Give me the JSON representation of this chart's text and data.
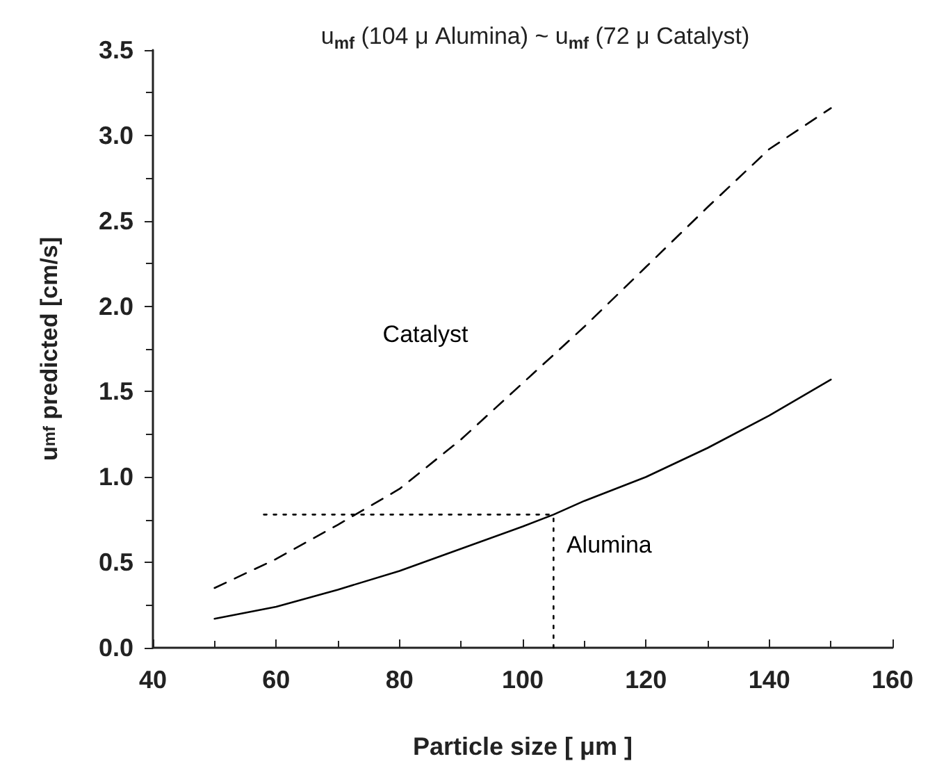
{
  "chart_data": {
    "type": "line",
    "title": "u$_{mf}$ (104 μ Alumina) ~ u$_{mf}$ (72 μ Catalyst)",
    "xlabel": "Particle size [ μm ]",
    "ylabel": "u$_{mf}$ predicted [cm/s]",
    "xlim": [
      40,
      160
    ],
    "xticks": [
      40,
      60,
      80,
      100,
      120,
      140,
      160
    ],
    "ylim": [
      0,
      3.5
    ],
    "yticks": [
      {
        "value": 0,
        "label": "0.0"
      },
      {
        "value": 0.5,
        "label": "0.5"
      },
      {
        "value": 1,
        "label": "1.0"
      },
      {
        "value": 1.5,
        "label": "1.5"
      },
      {
        "value": 2,
        "label": "2.0"
      },
      {
        "value": 2.5,
        "label": "2.5"
      },
      {
        "value": 3,
        "label": "3.0"
      },
      {
        "value": 3.5,
        "label": "3.5"
      }
    ],
    "grid": false,
    "legend": false,
    "marker": "none",
    "series": [
      {
        "name": "Catalyst",
        "color": "#000000",
        "line_style": "dashed",
        "x": [
          50,
          60,
          70,
          80,
          90,
          100,
          110,
          120,
          130,
          140,
          150
        ],
        "values": [
          0.35,
          0.52,
          0.72,
          0.93,
          1.22,
          1.55,
          1.88,
          2.23,
          2.58,
          2.92,
          3.16
        ]
      },
      {
        "name": "Alumina",
        "color": "#000000",
        "line_style": "solid",
        "x": [
          50,
          60,
          70,
          80,
          90,
          100,
          105,
          110,
          120,
          130,
          140,
          150
        ],
        "values": [
          0.17,
          0.24,
          0.34,
          0.45,
          0.58,
          0.71,
          0.78,
          0.86,
          1.0,
          1.17,
          1.36,
          1.57
        ]
      },
      {
        "color": "#000000",
        "line_style": "dotted",
        "x": [
          58,
          105
        ],
        "values": [
          0.78,
          0.78
        ]
      },
      {
        "color": "#000000",
        "line_style": "dotted",
        "x": [
          105,
          105
        ],
        "values": [
          0,
          0.78
        ]
      }
    ]
  }
}
